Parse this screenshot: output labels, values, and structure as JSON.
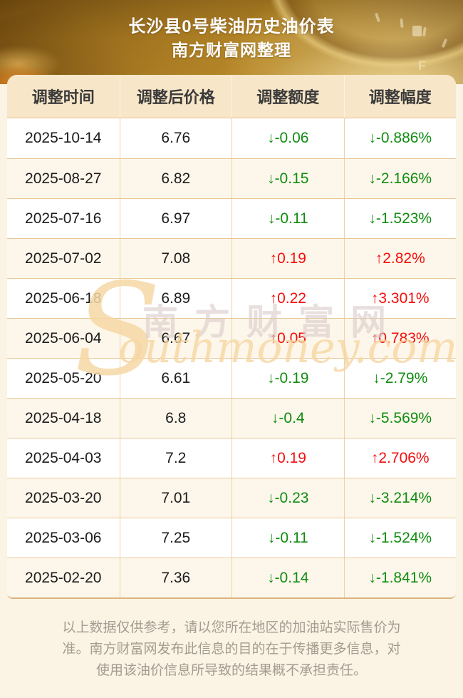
{
  "banner": {
    "title": "长沙县0号柴油历史油价表",
    "subtitle": "南方财富网整理"
  },
  "table": {
    "columns": [
      "调整时间",
      "调整后价格",
      "调整额度",
      "调整幅度"
    ],
    "arrows": {
      "up": "↑",
      "down": "↓"
    },
    "rows": [
      {
        "date": "2025-10-14",
        "price": "6.76",
        "change": "-0.06",
        "pct": "-0.886%",
        "dir": "down"
      },
      {
        "date": "2025-08-27",
        "price": "6.82",
        "change": "-0.15",
        "pct": "-2.166%",
        "dir": "down"
      },
      {
        "date": "2025-07-16",
        "price": "6.97",
        "change": "-0.11",
        "pct": "-1.523%",
        "dir": "down"
      },
      {
        "date": "2025-07-02",
        "price": "7.08",
        "change": "0.19",
        "pct": "2.82%",
        "dir": "up"
      },
      {
        "date": "2025-06-18",
        "price": "6.89",
        "change": "0.22",
        "pct": "3.301%",
        "dir": "up"
      },
      {
        "date": "2025-06-04",
        "price": "6.67",
        "change": "0.05",
        "pct": "0.783%",
        "dir": "up"
      },
      {
        "date": "2025-05-20",
        "price": "6.61",
        "change": "-0.19",
        "pct": "-2.79%",
        "dir": "down"
      },
      {
        "date": "2025-04-18",
        "price": "6.8",
        "change": "-0.4",
        "pct": "-5.569%",
        "dir": "down"
      },
      {
        "date": "2025-04-03",
        "price": "7.2",
        "change": "0.19",
        "pct": "2.706%",
        "dir": "up"
      },
      {
        "date": "2025-03-20",
        "price": "7.01",
        "change": "-0.23",
        "pct": "-3.214%",
        "dir": "down"
      },
      {
        "date": "2025-03-06",
        "price": "7.25",
        "change": "-0.11",
        "pct": "-1.524%",
        "dir": "down"
      },
      {
        "date": "2025-02-20",
        "price": "7.36",
        "change": "-0.14",
        "pct": "-1.841%",
        "dir": "down"
      }
    ]
  },
  "watermark": {
    "s_letter": "S",
    "cn": "南方财富网",
    "en": "outhmoney.com"
  },
  "footer": {
    "disclaimer": "以上数据仅供参考，请以您所在地区的加油站实际售价为准。南方财富网发布此信息的目的在于传播更多信息，对使用该油价信息所导致的结果概不承担责任。"
  },
  "colors": {
    "up_red": "#f50d0d",
    "down_green": "#108c10",
    "banner_gold_dark": "#7a5212",
    "banner_gold_light": "#ab7d1f",
    "table_header_bg": "#f8e6c8",
    "row_alt_bg": "#fdf7eb",
    "row_border": "#e9c795",
    "page_bg": "#fbf3e3",
    "watermark_tan": "#f6d7a4"
  }
}
